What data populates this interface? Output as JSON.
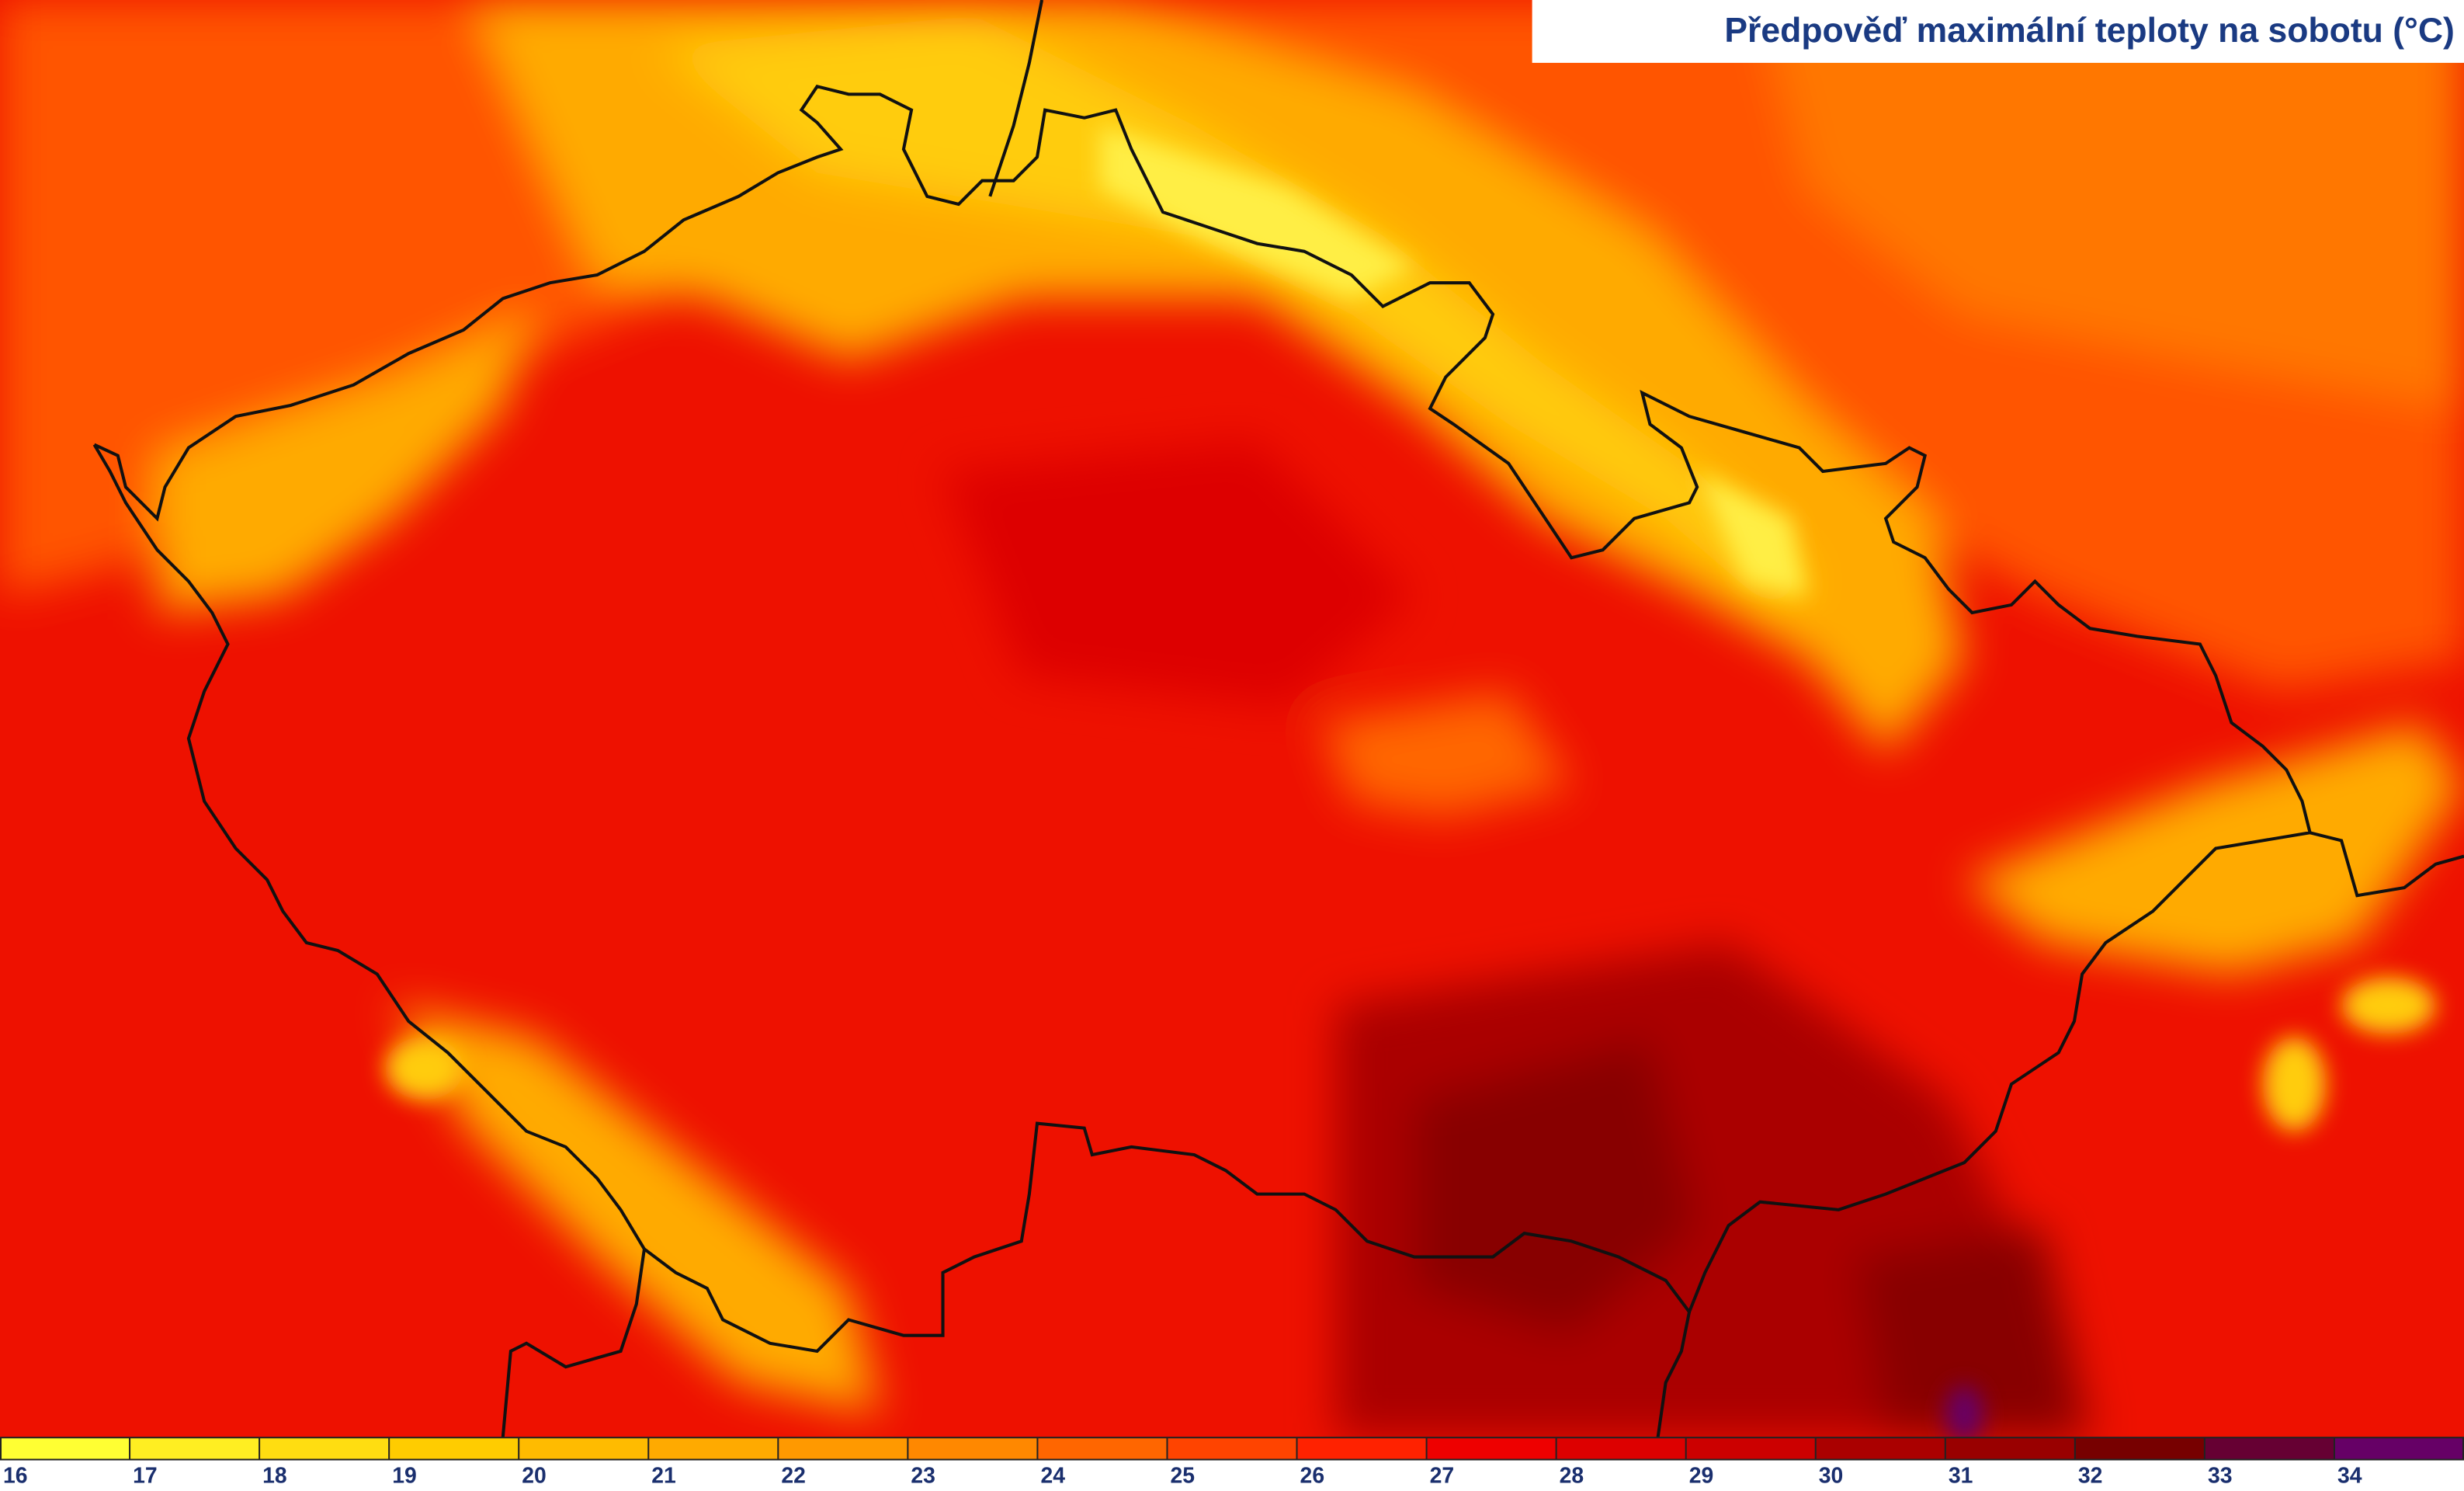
{
  "title": "Předpověď maximální teploty na sobotu (°C)",
  "legend": {
    "range": [
      16,
      35
    ],
    "ticks": [
      16,
      17,
      18,
      19,
      20,
      21,
      22,
      23,
      24,
      25,
      26,
      27,
      28,
      29,
      30,
      31,
      32,
      33,
      34
    ],
    "colors": [
      "#ffff33",
      "#ffee22",
      "#ffdd11",
      "#ffcc00",
      "#ffbb00",
      "#ffaa00",
      "#ff9900",
      "#ff8800",
      "#ff6600",
      "#ff4400",
      "#ff2200",
      "#ee0000",
      "#dd0000",
      "#cc0000",
      "#aa0000",
      "#990000",
      "#770000",
      "#660033",
      "#660066"
    ]
  }
}
